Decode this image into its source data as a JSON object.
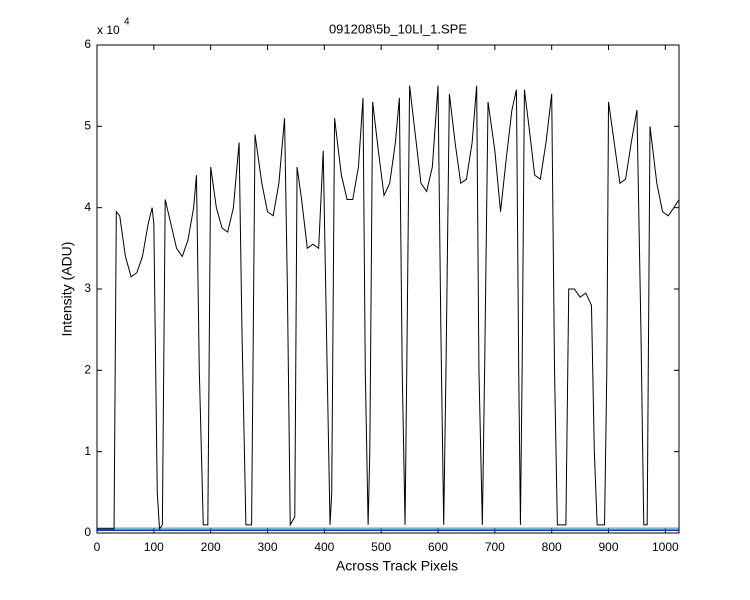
{
  "chart_data": {
    "type": "line",
    "title": "091208\\5b_10LI_1.SPE",
    "x_label": "Across Track Pixels",
    "y_label": "Intensity (ADU)",
    "y_multiplier": "x 10",
    "y_multiplier_exp": "4",
    "xlim": [
      0,
      1024
    ],
    "ylim": [
      0,
      6
    ],
    "xticks": [
      0,
      100,
      200,
      300,
      400,
      500,
      600,
      700,
      800,
      900,
      1000
    ],
    "yticks": [
      0,
      1,
      2,
      3,
      4,
      5,
      6
    ],
    "grid": false,
    "series": [
      {
        "color": "#1f8fbf",
        "x": [
          0,
          1024
        ],
        "values": [
          0.06,
          0.06
        ]
      },
      {
        "color": "#c0304a",
        "x": [
          0,
          1024
        ],
        "values": [
          0.04,
          0.04
        ]
      },
      {
        "color": "#2a2aa8",
        "x": [
          0,
          1024
        ],
        "values": [
          0.03,
          0.03
        ]
      },
      {
        "color": "#000000",
        "x": [
          0,
          30,
          34,
          40,
          50,
          60,
          70,
          80,
          90,
          97,
          100,
          106,
          110,
          115,
          120,
          130,
          140,
          150,
          160,
          170,
          175,
          180,
          187,
          195,
          200,
          210,
          220,
          230,
          240,
          250,
          255,
          262,
          272,
          278,
          290,
          300,
          310,
          320,
          330,
          335,
          340,
          348,
          352,
          360,
          370,
          380,
          390,
          398,
          405,
          410,
          413,
          418,
          430,
          440,
          450,
          460,
          468,
          472,
          477,
          480,
          485,
          495,
          505,
          515,
          525,
          532,
          537,
          542,
          545,
          550,
          560,
          570,
          580,
          590,
          600,
          605,
          610,
          614,
          620,
          630,
          640,
          650,
          660,
          668,
          672,
          678,
          682,
          688,
          700,
          710,
          720,
          730,
          738,
          742,
          745,
          748,
          752,
          760,
          770,
          780,
          790,
          800,
          805,
          810,
          825,
          830,
          840,
          850,
          860,
          870,
          875,
          880,
          893,
          897,
          900,
          910,
          920,
          930,
          940,
          950,
          957,
          962,
          968,
          973,
          985,
          995,
          1005,
          1015,
          1024
        ],
        "values": [
          0.05,
          0.05,
          3.95,
          3.9,
          3.4,
          3.15,
          3.2,
          3.4,
          3.8,
          4.0,
          3.8,
          0.5,
          0.05,
          0.1,
          4.1,
          3.8,
          3.5,
          3.4,
          3.6,
          4.0,
          4.4,
          2.0,
          0.1,
          0.1,
          4.5,
          4.0,
          3.75,
          3.7,
          4.0,
          4.8,
          2.5,
          0.1,
          0.1,
          4.9,
          4.3,
          3.95,
          3.9,
          4.3,
          5.1,
          3.0,
          0.1,
          0.2,
          4.5,
          4.1,
          3.5,
          3.55,
          3.5,
          4.7,
          2.0,
          0.1,
          0.5,
          5.1,
          4.4,
          4.1,
          4.1,
          4.5,
          5.35,
          2.0,
          0.1,
          1.0,
          5.3,
          4.7,
          4.15,
          4.3,
          4.8,
          5.35,
          2.0,
          0.1,
          2.0,
          5.5,
          4.9,
          4.3,
          4.2,
          4.5,
          5.5,
          2.5,
          0.1,
          2.0,
          5.4,
          4.8,
          4.3,
          4.35,
          4.8,
          5.5,
          2.0,
          0.1,
          2.0,
          5.3,
          4.7,
          3.95,
          4.6,
          5.2,
          5.45,
          2.0,
          0.1,
          2.0,
          5.45,
          5.0,
          4.4,
          4.35,
          4.8,
          5.4,
          2.0,
          0.1,
          0.1,
          3.0,
          3.0,
          2.9,
          2.95,
          2.8,
          1.0,
          0.1,
          0.1,
          2.0,
          5.3,
          4.8,
          4.3,
          4.35,
          4.8,
          5.2,
          2.5,
          0.1,
          0.1,
          5.0,
          4.3,
          3.95,
          3.9,
          4.0,
          4.1
        ]
      }
    ]
  }
}
